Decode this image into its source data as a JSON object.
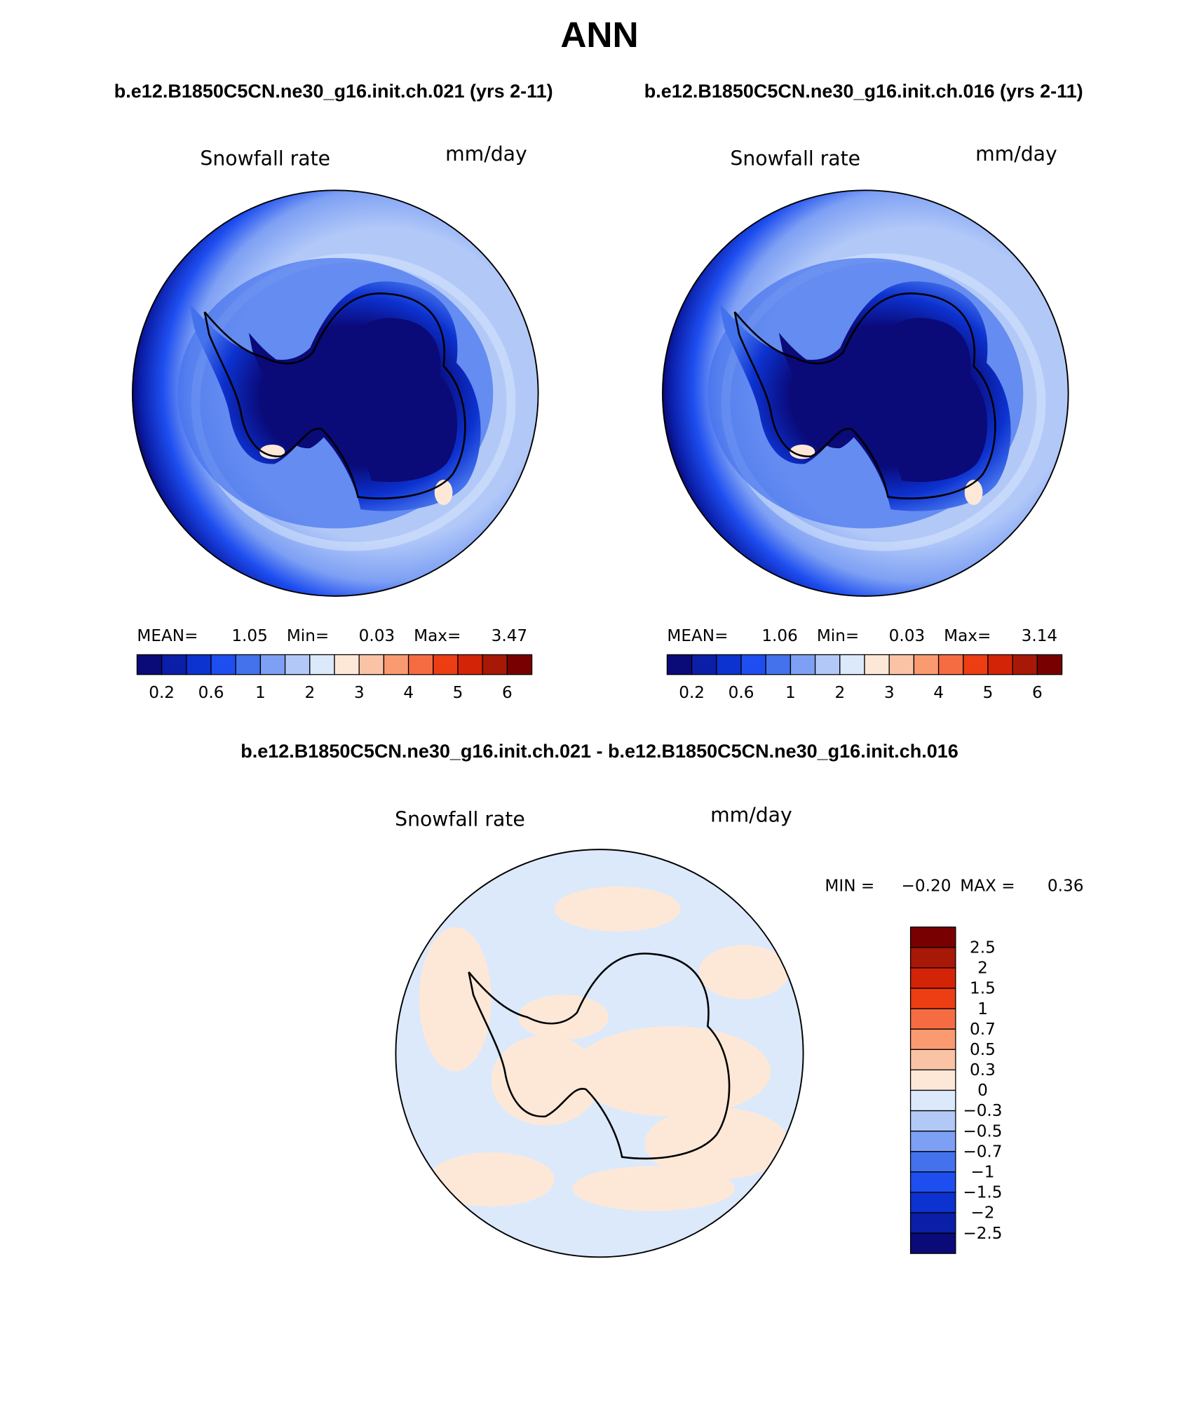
{
  "title": "ANN",
  "panels": [
    {
      "case": "b.e12.B1850C5CN.ne30_g16.init.ch.021 (yrs 2-11)",
      "variable": "Snowfall rate",
      "units": "mm/day",
      "stats": {
        "mean_label": "MEAN=",
        "mean": "1.05",
        "min_label": "Min=",
        "min": "0.03",
        "max_label": "Max=",
        "max": "3.47"
      },
      "colorbar": {
        "colors": [
          "#0a0a78",
          "#0a1ea8",
          "#0c32d0",
          "#1e4ef0",
          "#4472ec",
          "#7ea0f4",
          "#b2c9f8",
          "#dbe9fb",
          "#fde8d8",
          "#fbc3a6",
          "#f99a70",
          "#f56c42",
          "#ed3d12",
          "#d42408",
          "#a81806",
          "#780000"
        ],
        "labels": [
          "0.2",
          "0.6",
          "1",
          "2",
          "3",
          "4",
          "5",
          "6"
        ]
      }
    },
    {
      "case": "b.e12.B1850C5CN.ne30_g16.init.ch.016 (yrs 2-11)",
      "variable": "Snowfall rate",
      "units": "mm/day",
      "stats": {
        "mean_label": "MEAN=",
        "mean": "1.06",
        "min_label": "Min=",
        "min": "0.03",
        "max_label": "Max=",
        "max": "3.14"
      },
      "colorbar": {
        "colors": [
          "#0a0a78",
          "#0a1ea8",
          "#0c32d0",
          "#1e4ef0",
          "#4472ec",
          "#7ea0f4",
          "#b2c9f8",
          "#dbe9fb",
          "#fde8d8",
          "#fbc3a6",
          "#f99a70",
          "#f56c42",
          "#ed3d12",
          "#d42408",
          "#a81806",
          "#780000"
        ],
        "labels": [
          "0.2",
          "0.6",
          "1",
          "2",
          "3",
          "4",
          "5",
          "6"
        ]
      }
    }
  ],
  "difference": {
    "title": "b.e12.B1850C5CN.ne30_g16.init.ch.021 - b.e12.B1850C5CN.ne30_g16.init.ch.016",
    "variable": "Snowfall rate",
    "units": "mm/day",
    "stats": {
      "min_label": "MIN =",
      "min": "−0.20",
      "max_label": "MAX =",
      "max": "0.36"
    },
    "colorbar": {
      "colors": [
        "#0a0a78",
        "#0a1ea8",
        "#0c32d0",
        "#1e4ef0",
        "#4472ec",
        "#7ea0f4",
        "#b2c9f8",
        "#dbe9fb",
        "#fde8d8",
        "#fbc3a6",
        "#f99a70",
        "#f56c42",
        "#ed3d12",
        "#d42408",
        "#a81806",
        "#780000"
      ],
      "labels": [
        "−2.5",
        "−2",
        "−1.5",
        "−1",
        "−0.7",
        "−0.5",
        "−0.3",
        "0",
        "0.3",
        "0.5",
        "0.7",
        "1",
        "1.5",
        "2",
        "2.5"
      ]
    }
  }
}
